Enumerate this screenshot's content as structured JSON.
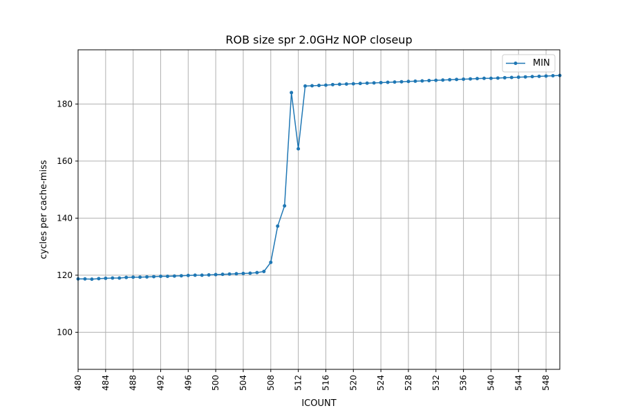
{
  "chart_data": {
    "type": "line",
    "title": "ROB size spr 2.0GHz NOP closeup",
    "xlabel": "ICOUNT",
    "ylabel": "cycles per cache-miss",
    "xlim": [
      480,
      550
    ],
    "ylim": [
      87,
      199
    ],
    "xticks": [
      480,
      484,
      488,
      492,
      496,
      500,
      504,
      508,
      512,
      516,
      520,
      524,
      528,
      532,
      536,
      540,
      544,
      548
    ],
    "yticks": [
      100,
      120,
      140,
      160,
      180
    ],
    "grid": true,
    "legend_position": "top-right",
    "colors": {
      "series": "#1f77b4",
      "grid": "#b0b0b0"
    },
    "series": [
      {
        "name": "MIN",
        "x": [
          480,
          481,
          482,
          483,
          484,
          485,
          486,
          487,
          488,
          489,
          490,
          491,
          492,
          493,
          494,
          495,
          496,
          497,
          498,
          499,
          500,
          501,
          502,
          503,
          504,
          505,
          506,
          507,
          508,
          509,
          510,
          511,
          512,
          513,
          514,
          515,
          516,
          517,
          518,
          519,
          520,
          521,
          522,
          523,
          524,
          525,
          526,
          527,
          528,
          529,
          530,
          531,
          532,
          533,
          534,
          535,
          536,
          537,
          538,
          539,
          540,
          541,
          542,
          543,
          544,
          545,
          546,
          547,
          548,
          549,
          550
        ],
        "values": [
          118.7,
          118.7,
          118.6,
          118.8,
          118.9,
          119.0,
          119.0,
          119.2,
          119.3,
          119.3,
          119.4,
          119.5,
          119.6,
          119.6,
          119.7,
          119.8,
          119.9,
          120.0,
          120.0,
          120.1,
          120.2,
          120.3,
          120.4,
          120.5,
          120.6,
          120.7,
          120.9,
          121.3,
          124.5,
          137.2,
          144.3,
          184.0,
          164.3,
          186.3,
          186.4,
          186.5,
          186.6,
          186.8,
          186.9,
          187.0,
          187.1,
          187.2,
          187.3,
          187.4,
          187.5,
          187.6,
          187.7,
          187.8,
          187.9,
          188.0,
          188.1,
          188.2,
          188.3,
          188.4,
          188.5,
          188.6,
          188.7,
          188.8,
          188.9,
          189.0,
          189.0,
          189.1,
          189.2,
          189.3,
          189.4,
          189.5,
          189.6,
          189.7,
          189.8,
          189.9,
          190.0
        ]
      }
    ]
  }
}
